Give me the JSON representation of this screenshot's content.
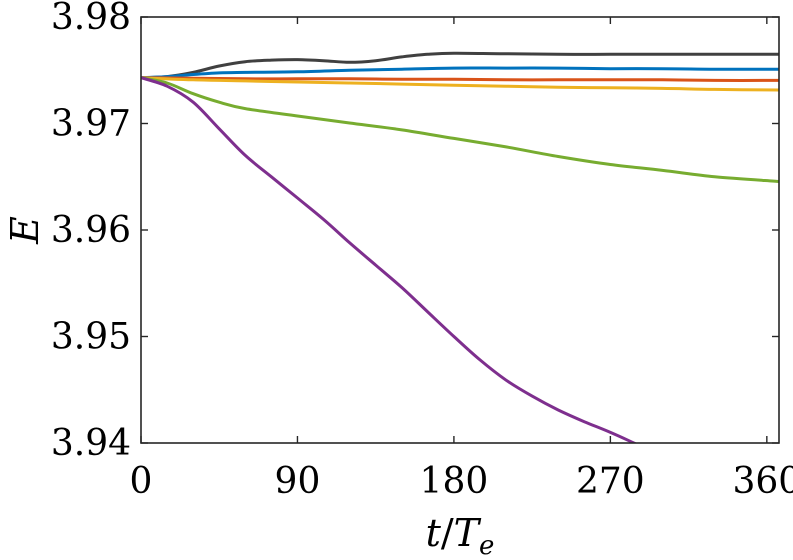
{
  "chart_data": {
    "type": "line",
    "title": "",
    "xlabel": "t/T_e",
    "xlabel_parts": {
      "num": "t",
      "slash": "/",
      "den": "T",
      "den_sub": "e"
    },
    "ylabel": "E",
    "xlim": [
      0,
      367
    ],
    "ylim": [
      3.94,
      3.98
    ],
    "xticks": [
      0,
      90,
      180,
      270,
      360
    ],
    "xtick_labels": [
      "0",
      "90",
      "180",
      "270",
      "360"
    ],
    "yticks": [
      3.94,
      3.95,
      3.96,
      3.97,
      3.98
    ],
    "ytick_labels": [
      "3.94",
      "3.95",
      "3.96",
      "3.97",
      "3.98"
    ],
    "grid": false,
    "legend": "none",
    "series": [
      {
        "color": "#404040",
        "points": [
          [
            0,
            3.9743
          ],
          [
            15,
            3.9744
          ],
          [
            30,
            3.9748
          ],
          [
            45,
            3.9754
          ],
          [
            60,
            3.9758
          ],
          [
            75,
            3.97595
          ],
          [
            90,
            3.976
          ],
          [
            105,
            3.9759
          ],
          [
            120,
            3.97575
          ],
          [
            135,
            3.9759
          ],
          [
            150,
            3.97625
          ],
          [
            165,
            3.9765
          ],
          [
            180,
            3.9766
          ],
          [
            210,
            3.97655
          ],
          [
            240,
            3.9765
          ],
          [
            270,
            3.9765
          ],
          [
            300,
            3.9765
          ],
          [
            330,
            3.9765
          ],
          [
            367,
            3.9765
          ]
        ]
      },
      {
        "color": "#0072BD",
        "points": [
          [
            0,
            3.9743
          ],
          [
            15,
            3.9744
          ],
          [
            30,
            3.9746
          ],
          [
            45,
            3.97475
          ],
          [
            60,
            3.9748
          ],
          [
            90,
            3.97485
          ],
          [
            120,
            3.975
          ],
          [
            150,
            3.9751
          ],
          [
            180,
            3.9752
          ],
          [
            210,
            3.9752
          ],
          [
            240,
            3.9752
          ],
          [
            270,
            3.97515
          ],
          [
            300,
            3.97515
          ],
          [
            330,
            3.9751
          ],
          [
            367,
            3.9751
          ]
        ]
      },
      {
        "color": "#D95319",
        "points": [
          [
            0,
            3.9743
          ],
          [
            30,
            3.97425
          ],
          [
            60,
            3.9742
          ],
          [
            90,
            3.9742
          ],
          [
            120,
            3.9742
          ],
          [
            150,
            3.97415
          ],
          [
            180,
            3.97415
          ],
          [
            210,
            3.9741
          ],
          [
            240,
            3.9741
          ],
          [
            270,
            3.9741
          ],
          [
            300,
            3.9741
          ],
          [
            330,
            3.97405
          ],
          [
            367,
            3.97405
          ]
        ]
      },
      {
        "color": "#EDB120",
        "points": [
          [
            0,
            3.9743
          ],
          [
            30,
            3.9741
          ],
          [
            60,
            3.974
          ],
          [
            90,
            3.9739
          ],
          [
            120,
            3.9738
          ],
          [
            150,
            3.9737
          ],
          [
            180,
            3.9736
          ],
          [
            210,
            3.9735
          ],
          [
            240,
            3.9734
          ],
          [
            270,
            3.97335
          ],
          [
            300,
            3.9733
          ],
          [
            330,
            3.9732
          ],
          [
            367,
            3.97315
          ]
        ]
      },
      {
        "color": "#77AC30",
        "points": [
          [
            0,
            3.9743
          ],
          [
            15,
            3.9738
          ],
          [
            30,
            3.9728
          ],
          [
            45,
            3.972
          ],
          [
            60,
            3.9714
          ],
          [
            90,
            3.9707
          ],
          [
            120,
            3.97005
          ],
          [
            150,
            3.9694
          ],
          [
            180,
            3.9686
          ],
          [
            210,
            3.9678
          ],
          [
            240,
            3.9669
          ],
          [
            270,
            3.96615
          ],
          [
            300,
            3.9656
          ],
          [
            330,
            3.965
          ],
          [
            367,
            3.96455
          ]
        ]
      },
      {
        "color": "#7E2F8E",
        "points": [
          [
            0,
            3.9743
          ],
          [
            15,
            3.9735
          ],
          [
            30,
            3.972
          ],
          [
            45,
            3.9695
          ],
          [
            60,
            3.967
          ],
          [
            75,
            3.965
          ],
          [
            90,
            3.963
          ],
          [
            105,
            3.961
          ],
          [
            120,
            3.9588
          ],
          [
            135,
            3.9567
          ],
          [
            150,
            3.9546
          ],
          [
            165,
            3.9523
          ],
          [
            180,
            3.95
          ],
          [
            195,
            3.9478
          ],
          [
            210,
            3.9459
          ],
          [
            225,
            3.9444
          ],
          [
            240,
            3.9431
          ],
          [
            255,
            3.942
          ],
          [
            270,
            3.941
          ],
          [
            285,
            3.9399
          ],
          [
            300,
            3.9388
          ],
          [
            315,
            3.9377
          ],
          [
            330,
            3.9366
          ],
          [
            343,
            3.9357
          ]
        ]
      }
    ]
  }
}
